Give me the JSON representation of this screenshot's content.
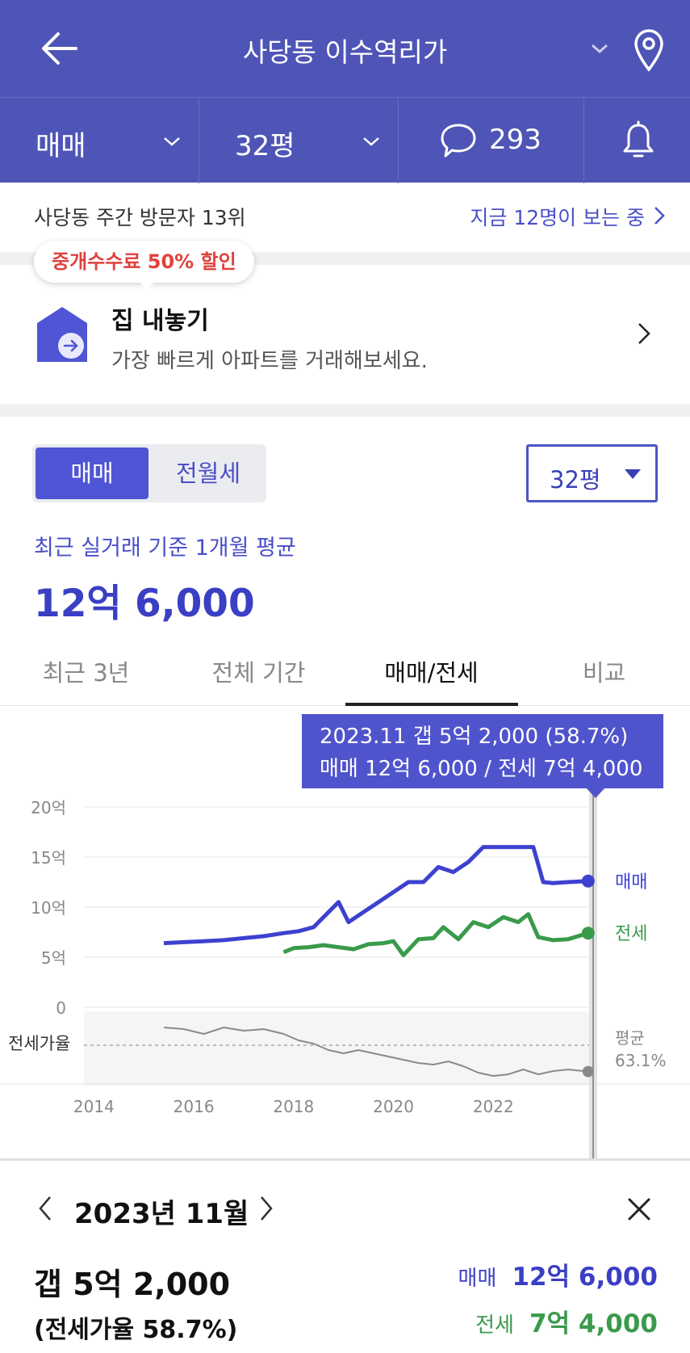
{
  "header": {
    "title": "사당동 이수역리가"
  },
  "subbar": {
    "trade_type": "매매",
    "size": "32평",
    "comment_count": "293"
  },
  "rank": {
    "text": "사당동 주간 방문자 13위",
    "viewers": "지금 12명이 보는 중"
  },
  "promo": {
    "badge": "중개수수료 50% 할인",
    "title": "집 내놓기",
    "subtitle": "가장 빠르게 아파트를 거래해보세요."
  },
  "filter": {
    "seg_active": "매매",
    "seg_inactive": "전월세",
    "size": "32평"
  },
  "average": {
    "label": "최근 실거래 기준 1개월 평균",
    "value": "12억 6,000"
  },
  "tabs": [
    "최근 3년",
    "전체 기간",
    "매매/전세",
    "비교"
  ],
  "tooltip": {
    "line1": "2023.11  갭 5억 2,000 (58.7%)",
    "line2": "매매 12억 6,000 / 전세 7억 4,000"
  },
  "chart_data": {
    "type": "line",
    "x_ticks": [
      "2014",
      "2016",
      "2018",
      "2020",
      "2022"
    ],
    "y_ticks": [
      "20억",
      "15억",
      "10억",
      "5억",
      "0"
    ],
    "ylim": [
      0,
      20
    ],
    "ratio_label": "전세가율",
    "avg_label": "평균",
    "avg_value": "63.1%",
    "series": [
      {
        "name": "매매",
        "color": "#3d41d0",
        "x": [
          2015.4,
          2015.8,
          2016.2,
          2016.6,
          2017.0,
          2017.4,
          2017.8,
          2018.1,
          2018.4,
          2018.7,
          2018.9,
          2019.1,
          2019.4,
          2019.7,
          2020.0,
          2020.3,
          2020.6,
          2020.9,
          2021.2,
          2021.5,
          2021.8,
          2022.1,
          2022.4,
          2022.8,
          2023.0,
          2023.2,
          2023.5,
          2023.9
        ],
        "values": [
          6.4,
          6.5,
          6.6,
          6.7,
          6.9,
          7.1,
          7.4,
          7.6,
          8.0,
          9.5,
          10.5,
          8.5,
          9.5,
          10.5,
          11.5,
          12.5,
          12.5,
          14.0,
          13.5,
          14.5,
          16.0,
          16.0,
          16.0,
          16.0,
          12.5,
          12.4,
          12.5,
          12.6
        ]
      },
      {
        "name": "전세",
        "color": "#3a9a4b",
        "x": [
          2017.8,
          2018.0,
          2018.3,
          2018.6,
          2018.9,
          2019.2,
          2019.5,
          2019.8,
          2020.0,
          2020.2,
          2020.5,
          2020.8,
          2021.0,
          2021.3,
          2021.6,
          2021.9,
          2022.2,
          2022.5,
          2022.7,
          2022.9,
          2023.2,
          2023.5,
          2023.9
        ],
        "values": [
          5.5,
          5.9,
          6.0,
          6.2,
          6.0,
          5.8,
          6.3,
          6.4,
          6.6,
          5.2,
          6.8,
          6.9,
          8.0,
          6.8,
          8.5,
          8.0,
          9.0,
          8.5,
          9.3,
          7.0,
          6.7,
          6.8,
          7.4
        ]
      },
      {
        "name": "전세가율",
        "color": "#8a8a8a",
        "x": [
          2015.4,
          2015.8,
          2016.2,
          2016.6,
          2017.0,
          2017.4,
          2017.8,
          2018.1,
          2018.4,
          2018.7,
          2019.0,
          2019.3,
          2019.6,
          2019.9,
          2020.2,
          2020.5,
          2020.8,
          2021.1,
          2021.4,
          2021.7,
          2022.0,
          2022.3,
          2022.6,
          2022.9,
          2023.2,
          2023.5,
          2023.9
        ],
        "values": [
          86,
          85,
          82,
          86,
          84,
          85,
          82,
          78,
          76,
          72,
          70,
          72,
          70,
          68,
          66,
          64,
          63,
          65,
          62,
          58,
          56,
          57,
          60,
          57,
          59,
          60,
          58.7
        ]
      }
    ]
  },
  "detail": {
    "month": "2023년 11월",
    "gap": "갭 5억 2,000",
    "ratio": "(전세가율 58.7%)",
    "sale_label": "매매",
    "sale_value": "12억 6,000",
    "jeonse_label": "전세",
    "jeonse_value": "7억 4,000"
  }
}
